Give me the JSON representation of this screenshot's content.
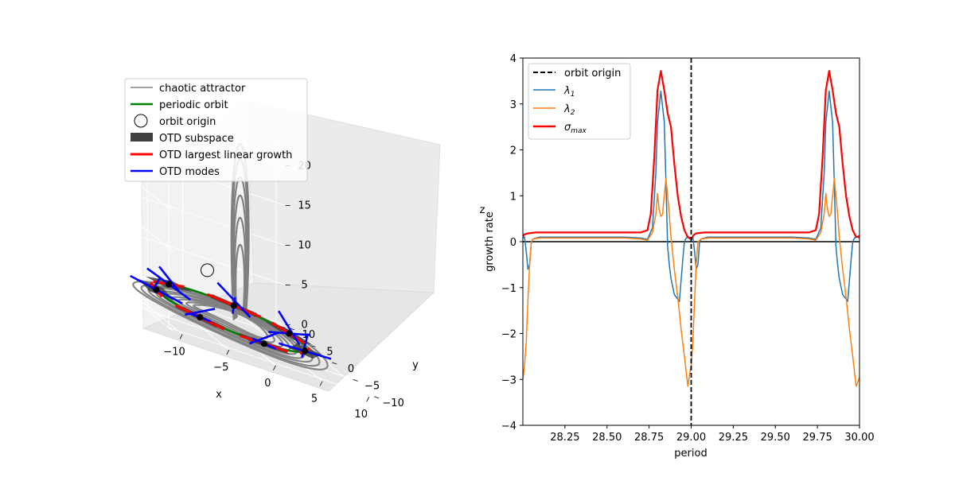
{
  "figure": {
    "background": "#ffffff"
  },
  "chart_data": [
    {
      "type": "line",
      "projection": "3d",
      "title": "",
      "xlabel": "x",
      "ylabel": "y",
      "zlabel": "z",
      "xticks": [
        "−10",
        "−5",
        "0",
        "5",
        "10"
      ],
      "yticks": [
        "−10",
        "−5",
        "0",
        "5",
        "10"
      ],
      "zticks": [
        "0",
        "5",
        "10",
        "15",
        "20"
      ],
      "xlim": [
        -11,
        11
      ],
      "ylim": [
        -11,
        11
      ],
      "zlim": [
        0,
        23
      ],
      "grid": true,
      "legend_position": "upper-left",
      "legend": [
        {
          "label": "chaotic attractor",
          "color": "#808080",
          "marker": "line"
        },
        {
          "label": "periodic orbit",
          "color": "#008000",
          "marker": "line"
        },
        {
          "label": "orbit origin",
          "color": "#000000",
          "marker": "circle"
        },
        {
          "label": "OTD subspace",
          "color": "#404040",
          "marker": "patch"
        },
        {
          "label": "OTD largest linear growth",
          "color": "#ff0000",
          "marker": "line"
        },
        {
          "label": "OTD modes",
          "color": "#0000ff",
          "marker": "line"
        }
      ],
      "attractor": {
        "loops": [
          {
            "r": 9.5,
            "z": 0.5
          },
          {
            "r": 8.7,
            "z": 0.5
          },
          {
            "r": 8.0,
            "z": 0.6
          },
          {
            "r": 7.2,
            "z": 0.6
          },
          {
            "r": 6.5,
            "z": 0.7
          },
          {
            "r": 5.8,
            "z": 0.7
          },
          {
            "r": 5.1,
            "z": 0.8
          },
          {
            "r": 4.3,
            "z": 0.9
          },
          {
            "r": 3.6,
            "z": 1.0
          }
        ],
        "arches": [
          {
            "height": 21.5,
            "spread": 1.0
          },
          {
            "height": 19.6,
            "spread": 0.92
          },
          {
            "height": 17.3,
            "spread": 0.84
          },
          {
            "height": 15.0,
            "spread": 0.74
          },
          {
            "height": 12.2,
            "spread": 0.62
          },
          {
            "height": 8.8,
            "spread": 0.5
          }
        ]
      },
      "periodic_orbit": {
        "radius": 7.4,
        "z": 1.2
      },
      "orbit_origin": {
        "x": 1.5,
        "y": 8.5,
        "z": 4.2
      },
      "otd_stations": [
        {
          "angle_deg": 15
        },
        {
          "angle_deg": 63
        },
        {
          "angle_deg": 120
        },
        {
          "angle_deg": 168
        },
        {
          "angle_deg": 222
        },
        {
          "angle_deg": 272
        },
        {
          "angle_deg": 325
        }
      ]
    },
    {
      "type": "line",
      "title": "",
      "xlabel": "period",
      "ylabel": "growth rate",
      "xlim": [
        28.0,
        30.0
      ],
      "ylim": [
        -4,
        4
      ],
      "xticks": [
        "28.25",
        "28.50",
        "28.75",
        "29.00",
        "29.25",
        "29.50",
        "29.75",
        "30.00"
      ],
      "xtick_values": [
        28.25,
        28.5,
        28.75,
        29.0,
        29.25,
        29.5,
        29.75,
        30.0
      ],
      "yticks": [
        "−4",
        "−3",
        "−2",
        "−1",
        "0",
        "1",
        "2",
        "3",
        "4"
      ],
      "ytick_values": [
        -4,
        -3,
        -2,
        -1,
        0,
        1,
        2,
        3,
        4
      ],
      "grid": false,
      "legend_position": "upper-left",
      "vline": {
        "x": 29.0,
        "label": "orbit origin",
        "color": "#000000",
        "style": "dashed"
      },
      "hline": {
        "y": 0,
        "color": "#000000"
      },
      "series": [
        {
          "name": "λ1",
          "label_base": "λ",
          "label_sub": "1",
          "color": "#1f77b4",
          "x": [
            28.0,
            28.01,
            28.02,
            28.03,
            28.04,
            28.05,
            28.06,
            28.08,
            28.1,
            28.2,
            28.4,
            28.6,
            28.7,
            28.74,
            28.77,
            28.79,
            28.8,
            28.82,
            28.84,
            28.85,
            28.86,
            28.87,
            28.88,
            28.9,
            28.93,
            28.95,
            28.96,
            28.97,
            28.98,
            28.99,
            29.0,
            29.01,
            29.02,
            29.03,
            29.04,
            29.05,
            29.06,
            29.08,
            29.1,
            29.2,
            29.4,
            29.6,
            29.7,
            29.74,
            29.77,
            29.79,
            29.8,
            29.82,
            29.84,
            29.85,
            29.86,
            29.87,
            29.88,
            29.9,
            29.93,
            29.95,
            29.96,
            29.97,
            29.98,
            29.99,
            30.0
          ],
          "y": [
            0.08,
            0.1,
            -0.2,
            -0.6,
            -0.5,
            0.0,
            0.06,
            0.08,
            0.1,
            0.1,
            0.1,
            0.1,
            0.08,
            0.05,
            0.3,
            1.5,
            2.6,
            3.28,
            2.6,
            1.3,
            -0.1,
            -0.5,
            -0.8,
            -1.15,
            -1.3,
            -0.4,
            0.0,
            0.08,
            0.1,
            0.1,
            0.08,
            0.1,
            -0.2,
            -0.6,
            -0.5,
            0.0,
            0.06,
            0.08,
            0.1,
            0.1,
            0.1,
            0.1,
            0.08,
            0.05,
            0.3,
            1.5,
            2.6,
            3.28,
            2.6,
            1.3,
            -0.1,
            -0.5,
            -0.8,
            -1.15,
            -1.3,
            -0.4,
            0.0,
            0.08,
            0.1,
            0.1,
            0.08
          ]
        },
        {
          "name": "λ2",
          "label_base": "λ",
          "label_sub": "2",
          "color": "#ff7f0e",
          "x": [
            28.0,
            28.01,
            28.02,
            28.03,
            28.04,
            28.05,
            28.06,
            28.08,
            28.1,
            28.2,
            28.4,
            28.6,
            28.7,
            28.74,
            28.77,
            28.79,
            28.8,
            28.81,
            28.82,
            28.83,
            28.84,
            28.85,
            28.86,
            28.87,
            28.88,
            28.9,
            28.92,
            28.94,
            28.96,
            28.98,
            28.99,
            29.0,
            29.01,
            29.02,
            29.03,
            29.04,
            29.05,
            29.06,
            29.08,
            29.1,
            29.2,
            29.4,
            29.6,
            29.7,
            29.74,
            29.77,
            29.79,
            29.8,
            29.81,
            29.82,
            29.83,
            29.84,
            29.85,
            29.86,
            29.87,
            29.88,
            29.9,
            29.92,
            29.94,
            29.96,
            29.98,
            29.99,
            30.0
          ],
          "y": [
            -3.0,
            -2.7,
            -2.2,
            -1.3,
            -0.5,
            0.0,
            0.06,
            0.07,
            0.08,
            0.08,
            0.08,
            0.08,
            0.06,
            0.03,
            0.2,
            0.6,
            1.05,
            0.7,
            0.55,
            0.6,
            1.0,
            1.38,
            1.0,
            0.6,
            0.1,
            -0.6,
            -1.2,
            -1.9,
            -2.5,
            -3.15,
            -2.9,
            -2.7,
            -2.2,
            -1.3,
            -0.5,
            0.0,
            0.03,
            0.06,
            0.07,
            0.08,
            0.08,
            0.08,
            0.08,
            0.06,
            0.03,
            0.2,
            0.6,
            1.05,
            0.7,
            0.55,
            0.6,
            1.0,
            1.38,
            1.0,
            0.6,
            0.1,
            -0.6,
            -1.2,
            -1.9,
            -2.5,
            -3.15,
            -3.05,
            -2.95
          ]
        },
        {
          "name": "σmax",
          "label_base": "σ",
          "label_sub": "max",
          "color": "#ff0000",
          "x": [
            28.0,
            28.01,
            28.02,
            28.03,
            28.05,
            28.08,
            28.1,
            28.2,
            28.4,
            28.6,
            28.7,
            28.74,
            28.76,
            28.78,
            28.8,
            28.82,
            28.84,
            28.86,
            28.88,
            28.9,
            28.92,
            28.94,
            28.96,
            28.98,
            29.0,
            29.01,
            29.02,
            29.03,
            29.05,
            29.08,
            29.1,
            29.2,
            29.4,
            29.6,
            29.7,
            29.74,
            29.76,
            29.78,
            29.8,
            29.82,
            29.84,
            29.86,
            29.88,
            29.9,
            29.92,
            29.94,
            29.96,
            29.98,
            30.0
          ],
          "y": [
            0.12,
            0.16,
            0.17,
            0.18,
            0.19,
            0.2,
            0.2,
            0.2,
            0.2,
            0.2,
            0.2,
            0.25,
            0.6,
            1.8,
            3.3,
            3.72,
            3.3,
            2.8,
            2.5,
            1.7,
            1.0,
            0.55,
            0.25,
            0.1,
            0.05,
            0.12,
            0.16,
            0.18,
            0.19,
            0.2,
            0.2,
            0.2,
            0.2,
            0.2,
            0.2,
            0.25,
            0.6,
            1.8,
            3.3,
            3.72,
            3.3,
            2.8,
            2.5,
            1.7,
            1.0,
            0.55,
            0.25,
            0.1,
            0.12
          ]
        }
      ]
    }
  ]
}
